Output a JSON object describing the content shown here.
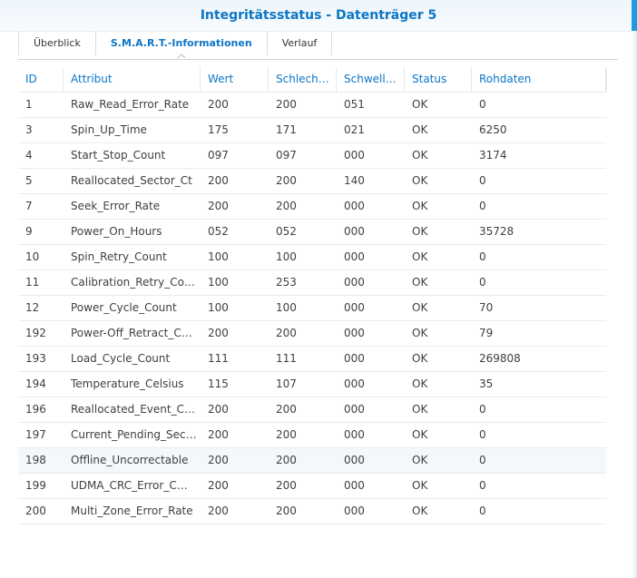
{
  "window": {
    "title": "Integritätsstatus - Datenträger 5"
  },
  "tabs": [
    {
      "label": "Überblick",
      "active": false
    },
    {
      "label": "S.M.A.R.T.-Informationen",
      "active": true
    },
    {
      "label": "Verlauf",
      "active": false
    }
  ],
  "table": {
    "columns": [
      "ID",
      "Attribut",
      "Wert",
      "Schlech…",
      "Schwell…",
      "Status",
      "Rohdaten"
    ],
    "rows": [
      [
        "1",
        "Raw_Read_Error_Rate",
        "200",
        "200",
        "051",
        "OK",
        "0"
      ],
      [
        "3",
        "Spin_Up_Time",
        "175",
        "171",
        "021",
        "OK",
        "6250"
      ],
      [
        "4",
        "Start_Stop_Count",
        "097",
        "097",
        "000",
        "OK",
        "3174"
      ],
      [
        "5",
        "Reallocated_Sector_Ct",
        "200",
        "200",
        "140",
        "OK",
        "0"
      ],
      [
        "7",
        "Seek_Error_Rate",
        "200",
        "200",
        "000",
        "OK",
        "0"
      ],
      [
        "9",
        "Power_On_Hours",
        "052",
        "052",
        "000",
        "OK",
        "35728"
      ],
      [
        "10",
        "Spin_Retry_Count",
        "100",
        "100",
        "000",
        "OK",
        "0"
      ],
      [
        "11",
        "Calibration_Retry_Co…",
        "100",
        "253",
        "000",
        "OK",
        "0"
      ],
      [
        "12",
        "Power_Cycle_Count",
        "100",
        "100",
        "000",
        "OK",
        "70"
      ],
      [
        "192",
        "Power-Off_Retract_C…",
        "200",
        "200",
        "000",
        "OK",
        "79"
      ],
      [
        "193",
        "Load_Cycle_Count",
        "111",
        "111",
        "000",
        "OK",
        "269808"
      ],
      [
        "194",
        "Temperature_Celsius",
        "115",
        "107",
        "000",
        "OK",
        "35"
      ],
      [
        "196",
        "Reallocated_Event_C…",
        "200",
        "200",
        "000",
        "OK",
        "0"
      ],
      [
        "197",
        "Current_Pending_Sec…",
        "200",
        "200",
        "000",
        "OK",
        "0"
      ],
      [
        "198",
        "Offline_Uncorrectable",
        "200",
        "200",
        "000",
        "OK",
        "0"
      ],
      [
        "199",
        "UDMA_CRC_Error_C…",
        "200",
        "200",
        "000",
        "OK",
        "0"
      ],
      [
        "200",
        "Multi_Zone_Error_Rate",
        "200",
        "200",
        "000",
        "OK",
        "0"
      ]
    ],
    "highlighted_row": 14
  },
  "colors": {
    "accent": "#0c76c6",
    "text": "#404040",
    "hover_row": "#f3f8fc"
  }
}
